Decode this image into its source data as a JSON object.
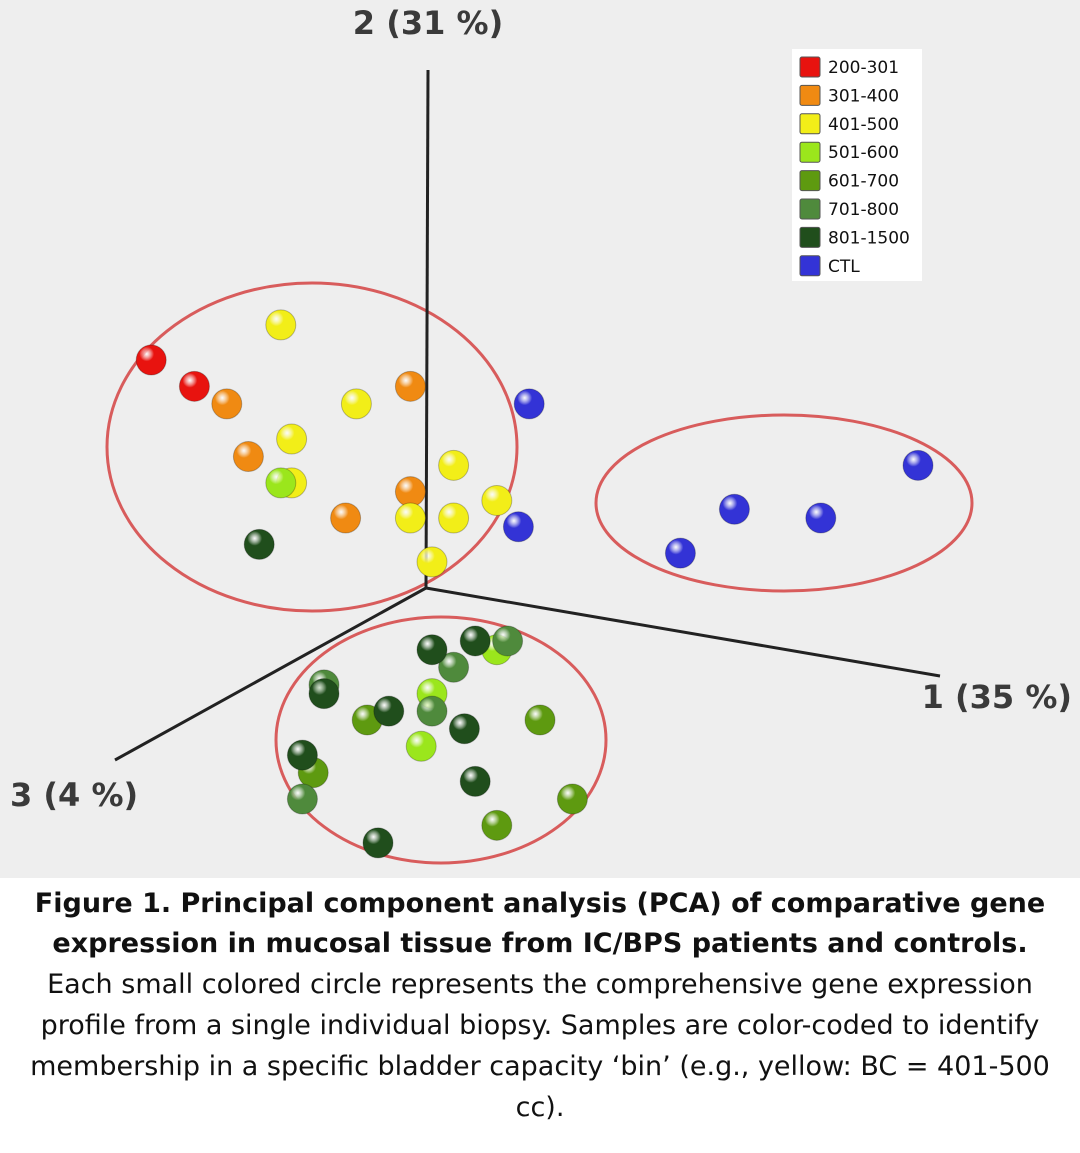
{
  "chart_data": {
    "type": "scatter",
    "subtype": "3d-pca",
    "axes": [
      {
        "id": "pc1",
        "label": "1 (35 %)"
      },
      {
        "id": "pc2",
        "label": "2 (31 %)"
      },
      {
        "id": "pc3",
        "label": "3 (4 %)"
      }
    ],
    "legend": {
      "placement": "top-right",
      "entries": [
        {
          "label": "200-301",
          "color": "#e8130f"
        },
        {
          "label": "301-400",
          "color": "#f08a12"
        },
        {
          "label": "401-500",
          "color": "#f2ee18"
        },
        {
          "label": "501-600",
          "color": "#9be61c"
        },
        {
          "label": "601-700",
          "color": "#5e9a10"
        },
        {
          "label": "701-800",
          "color": "#4f8a3c"
        },
        {
          "label": "801-1500",
          "color": "#204e1c"
        },
        {
          "label": "CTL",
          "color": "#3333d6"
        }
      ]
    },
    "clusters_note": "Screen-projected sample positions (unitless, 0-100 scale) grouped by visible ellipse",
    "series": [
      {
        "name": "200-301",
        "points": [
          [
            14,
            41
          ],
          [
            18,
            44
          ]
        ]
      },
      {
        "name": "301-400",
        "points": [
          [
            21,
            46
          ],
          [
            23,
            52
          ],
          [
            32,
            59
          ],
          [
            38,
            44
          ],
          [
            38,
            56
          ]
        ]
      },
      {
        "name": "401-500",
        "points": [
          [
            26,
            37
          ],
          [
            33,
            46
          ],
          [
            27,
            50
          ],
          [
            27,
            55
          ],
          [
            42,
            53
          ],
          [
            38,
            59
          ],
          [
            42,
            59
          ],
          [
            46,
            57
          ],
          [
            40,
            64
          ]
        ]
      },
      {
        "name": "501-600",
        "points": [
          [
            26,
            55
          ],
          [
            46,
            74
          ],
          [
            40,
            79
          ],
          [
            39,
            85
          ]
        ]
      },
      {
        "name": "601-700",
        "points": [
          [
            34,
            82
          ],
          [
            50,
            82
          ],
          [
            29,
            88
          ],
          [
            53,
            91
          ],
          [
            46,
            94
          ]
        ]
      },
      {
        "name": "701-800",
        "points": [
          [
            30,
            78
          ],
          [
            42,
            76
          ],
          [
            40,
            81
          ],
          [
            47,
            73
          ],
          [
            28,
            91
          ]
        ]
      },
      {
        "name": "801-1500",
        "points": [
          [
            24,
            62
          ],
          [
            30,
            79
          ],
          [
            40,
            74
          ],
          [
            44,
            73
          ],
          [
            36,
            81
          ],
          [
            43,
            83
          ],
          [
            28,
            86
          ],
          [
            44,
            89
          ],
          [
            35,
            96
          ]
        ]
      },
      {
        "name": "CTL",
        "points": [
          [
            49,
            46
          ],
          [
            48,
            60
          ],
          [
            68,
            58
          ],
          [
            76,
            59
          ],
          [
            85,
            53
          ],
          [
            63,
            63
          ]
        ]
      }
    ]
  },
  "caption": {
    "title": "Figure 1. Principal component analysis (PCA) of comparative gene expression in mucosal tissue from IC/BPS patients and controls.",
    "body": "Each small colored circle represents the comprehensive gene expression profile from a single individual biopsy. Samples are color-coded to identify membership in a specific bladder capacity ‘bin’ (e.g., yellow: BC = 401-500 cc)."
  }
}
